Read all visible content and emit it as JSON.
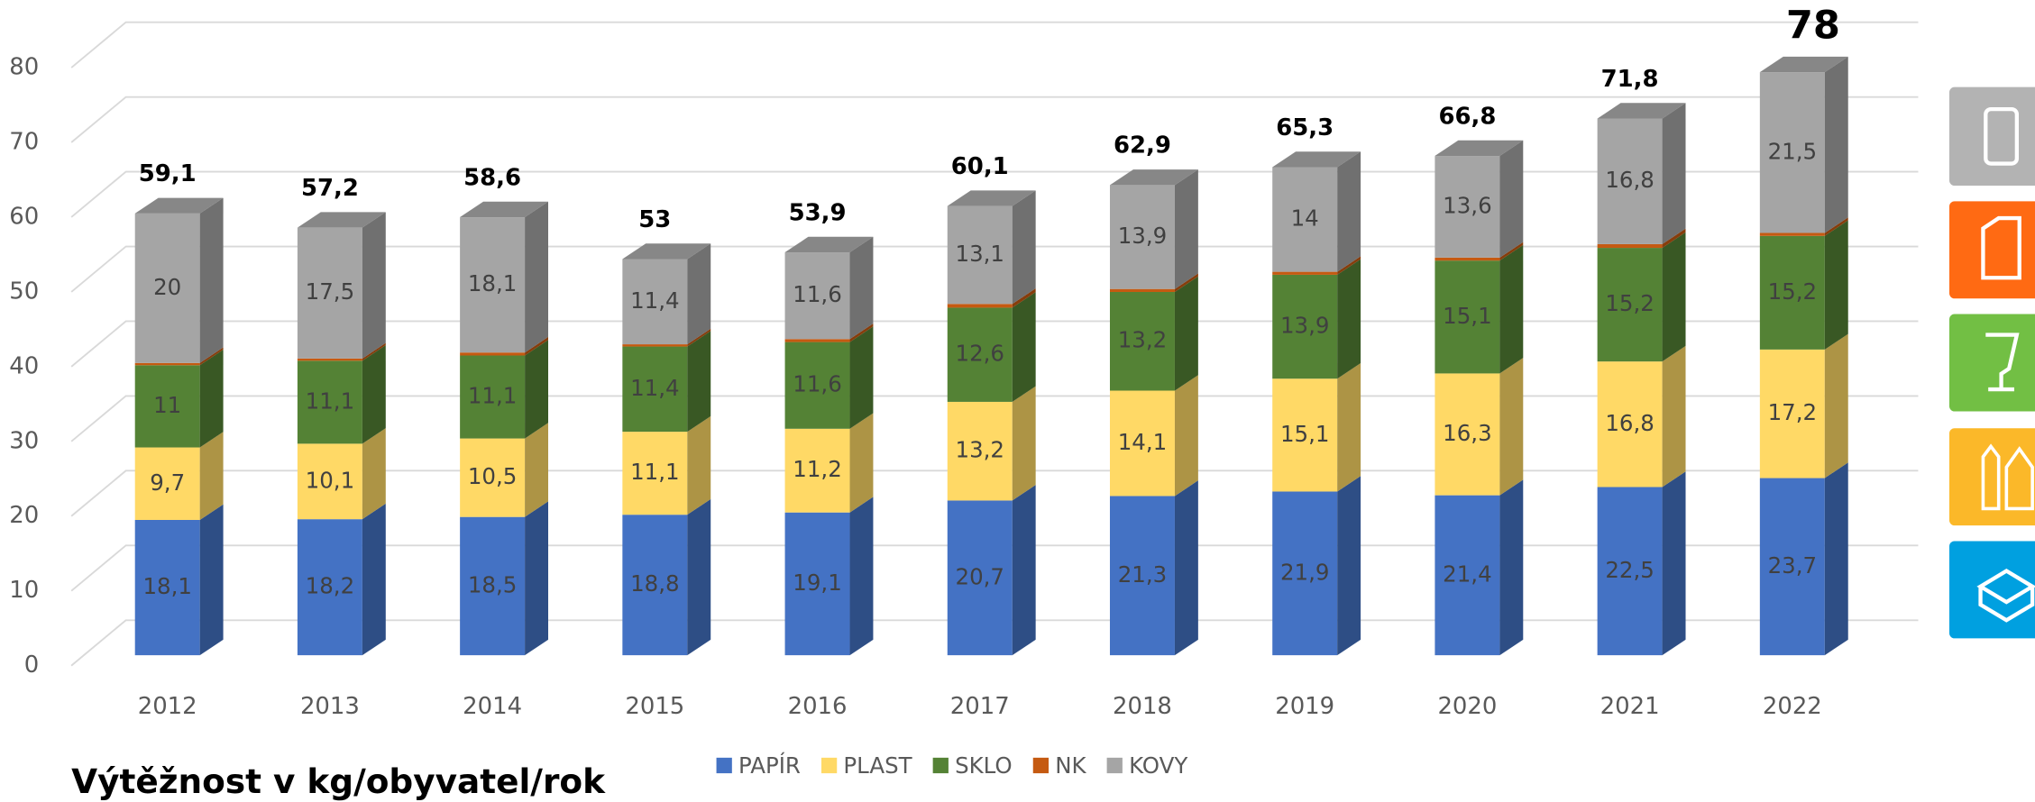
{
  "chart_data": {
    "type": "bar",
    "title": "Výtěžnost v kg/obyvatel/rok",
    "categories": [
      "2012",
      "2013",
      "2014",
      "2015",
      "2016",
      "2017",
      "2018",
      "2019",
      "2020",
      "2021",
      "2022"
    ],
    "series": [
      {
        "name": "PAPÍR",
        "color": "#4472c4",
        "values": [
          18.1,
          18.2,
          18.5,
          18.8,
          19.1,
          20.7,
          21.3,
          21.9,
          21.4,
          22.5,
          23.7
        ],
        "value_labels": [
          "18,1",
          "18,2",
          "18,5",
          "18,8",
          "19,1",
          "20,7",
          "21,3",
          "21,9",
          "21,4",
          "22,5",
          "23,7"
        ]
      },
      {
        "name": "PLAST",
        "color": "#ffd966",
        "values": [
          9.7,
          10.1,
          10.5,
          11.1,
          11.2,
          13.2,
          14.1,
          15.1,
          16.3,
          16.8,
          17.2
        ],
        "value_labels": [
          "9,7",
          "10,1",
          "10,5",
          "11,1",
          "11,2",
          "13,2",
          "14,1",
          "15,1",
          "16,3",
          "16,8",
          "17,2"
        ]
      },
      {
        "name": "SKLO",
        "color": "#548235",
        "values": [
          11,
          11.1,
          11.1,
          11.4,
          11.6,
          12.6,
          13.2,
          13.9,
          15.1,
          15.2,
          15.2
        ],
        "value_labels": [
          "11",
          "11,1",
          "11,1",
          "11,4",
          "11,6",
          "12,6",
          "13,2",
          "13,9",
          "15,1",
          "15,2",
          "15,2"
        ]
      },
      {
        "name": "NK",
        "color": "#c55a11",
        "values": [
          0.3,
          0.3,
          0.4,
          0.3,
          0.4,
          0.5,
          0.4,
          0.4,
          0.4,
          0.5,
          0.4
        ]
      },
      {
        "name": "KOVY",
        "color": "#a5a5a5",
        "values": [
          20,
          17.5,
          18.1,
          11.4,
          11.6,
          13.1,
          13.9,
          14,
          13.6,
          16.8,
          21.5
        ],
        "value_labels": [
          "20",
          "17,5",
          "18,1",
          "11,4",
          "11,6",
          "13,1",
          "13,9",
          "14",
          "13,6",
          "16,8",
          "21,5"
        ]
      }
    ],
    "totals": {
      "values": [
        59.1,
        57.2,
        58.6,
        53,
        53.9,
        60.1,
        62.9,
        65.3,
        66.8,
        71.8,
        78
      ],
      "value_labels": [
        "59,1",
        "57,2",
        "58,6",
        "53",
        "53,9",
        "60,1",
        "62,9",
        "65,3",
        "66,8",
        "71,8",
        "78"
      ]
    },
    "ylim": [
      0,
      80
    ],
    "yticks": [
      0,
      10,
      20,
      30,
      40,
      50,
      60,
      70,
      80
    ],
    "grid": true
  }
}
